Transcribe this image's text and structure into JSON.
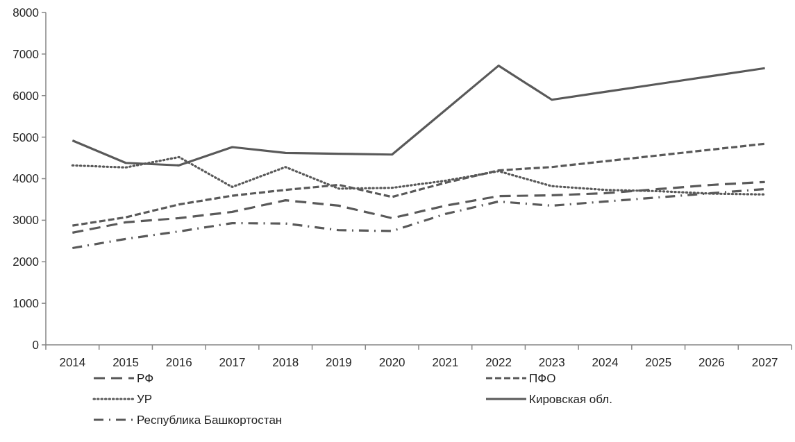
{
  "chart_data": {
    "type": "line",
    "categories": [
      "2014",
      "2015",
      "2016",
      "2017",
      "2018",
      "2019",
      "2020",
      "2021",
      "2022",
      "2023",
      "2024",
      "2025",
      "2026",
      "2027"
    ],
    "ylim": [
      0,
      8000
    ],
    "yticks": [
      0,
      1000,
      2000,
      3000,
      4000,
      5000,
      6000,
      7000,
      8000
    ],
    "grid": false,
    "legend": "bottom",
    "marker": "none",
    "series": [
      {
        "name": "РФ",
        "color": "#595959",
        "line_style": "longdash",
        "values": [
          2700,
          2950,
          3050,
          3200,
          3480,
          3350,
          3050,
          3350,
          3580,
          3600,
          3650,
          3750,
          3850,
          3920
        ]
      },
      {
        "name": "ПФО",
        "color": "#595959",
        "line_style": "dashed",
        "values": [
          2870,
          3070,
          3380,
          3590,
          3730,
          3850,
          3560,
          3900,
          4200,
          4280,
          4420,
          4560,
          4700,
          4840
        ]
      },
      {
        "name": "УР",
        "color": "#595959",
        "line_style": "dotted",
        "values": [
          4320,
          4270,
          4520,
          3800,
          4280,
          3760,
          3780,
          3950,
          4180,
          3820,
          3730,
          3700,
          3640,
          3620
        ]
      },
      {
        "name": "Кировская обл.",
        "color": "#595959",
        "line_style": "solid",
        "values": [
          4920,
          4380,
          4320,
          4760,
          4620,
          4600,
          4580,
          5650,
          6720,
          5900,
          6090,
          6280,
          6470,
          6660
        ]
      },
      {
        "name": "Республика Башкортостан",
        "color": "#595959",
        "line_style": "dashdot",
        "values": [
          2330,
          2550,
          2730,
          2930,
          2920,
          2760,
          2740,
          3150,
          3450,
          3350,
          3450,
          3550,
          3650,
          3750
        ]
      }
    ]
  }
}
